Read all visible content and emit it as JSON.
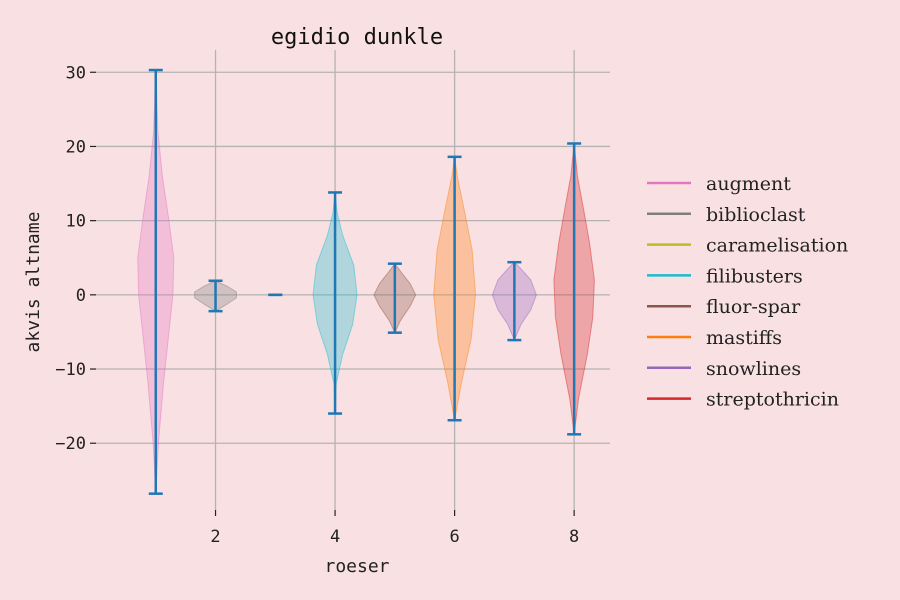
{
  "chart_data": {
    "type": "violin",
    "title": "egidio dunkle",
    "xlabel": "roeser",
    "ylabel": "akvis altname",
    "xlim": [
      0.0,
      8.6
    ],
    "ylim": [
      -29,
      33
    ],
    "xticks": [
      2,
      4,
      6,
      8
    ],
    "yticks": [
      -20,
      -10,
      0,
      10,
      20,
      30
    ],
    "grid": true,
    "legend_position": "right",
    "summary_color": "#1f77b4",
    "series": [
      {
        "name": "augment",
        "position": 1,
        "color": "#e377c2",
        "min": -26.8,
        "max": 30.3,
        "mean": 0.0,
        "density": [
          [
            -26.8,
            0.0
          ],
          [
            -20,
            0.12
          ],
          [
            -12,
            0.35
          ],
          [
            -5,
            0.6
          ],
          [
            0,
            0.78
          ],
          [
            5,
            0.82
          ],
          [
            10,
            0.6
          ],
          [
            16,
            0.3
          ],
          [
            22,
            0.1
          ],
          [
            30.3,
            0.0
          ]
        ]
      },
      {
        "name": "biblioclast",
        "position": 2,
        "color": "#7f7f7f",
        "min": -2.2,
        "max": 1.9,
        "mean": 0.0,
        "density": [
          [
            -2.2,
            0.0
          ],
          [
            -1.3,
            0.5
          ],
          [
            -0.4,
            0.95
          ],
          [
            0.4,
            0.95
          ],
          [
            1.2,
            0.5
          ],
          [
            1.9,
            0.0
          ]
        ]
      },
      {
        "name": "caramelisation",
        "position": 3,
        "color": "#bcbd22",
        "min": 0.0,
        "max": 0.0,
        "mean": 0.0,
        "density": []
      },
      {
        "name": "filibusters",
        "position": 4,
        "color": "#17becf",
        "min": -16.0,
        "max": 13.8,
        "mean": 0.0,
        "density": [
          [
            -16,
            0.0
          ],
          [
            -12,
            0.05
          ],
          [
            -8,
            0.35
          ],
          [
            -4,
            0.8
          ],
          [
            0,
            1.0
          ],
          [
            4,
            0.85
          ],
          [
            8,
            0.35
          ],
          [
            11,
            0.1
          ],
          [
            13.8,
            0.0
          ]
        ]
      },
      {
        "name": "fluor-spar",
        "position": 5,
        "color": "#8c564b",
        "min": -5.1,
        "max": 4.2,
        "mean": 0.0,
        "density": [
          [
            -5.1,
            0.0
          ],
          [
            -3.5,
            0.25
          ],
          [
            -1.5,
            0.7
          ],
          [
            0,
            0.95
          ],
          [
            1.5,
            0.7
          ],
          [
            3,
            0.3
          ],
          [
            4.2,
            0.0
          ]
        ]
      },
      {
        "name": "mastiffs",
        "position": 6,
        "color": "#ff7f0e",
        "min": -16.9,
        "max": 18.6,
        "mean": 0.0,
        "density": [
          [
            -16.9,
            0.0
          ],
          [
            -12,
            0.3
          ],
          [
            -6,
            0.75
          ],
          [
            0,
            0.95
          ],
          [
            6,
            0.8
          ],
          [
            12,
            0.4
          ],
          [
            16,
            0.12
          ],
          [
            18.6,
            0.0
          ]
        ]
      },
      {
        "name": "snowlines",
        "position": 7,
        "color": "#9467bd",
        "min": -6.1,
        "max": 4.4,
        "mean": 0.0,
        "density": [
          [
            -6.1,
            0.0
          ],
          [
            -4,
            0.3
          ],
          [
            -2,
            0.75
          ],
          [
            0,
            1.0
          ],
          [
            2,
            0.75
          ],
          [
            3.5,
            0.3
          ],
          [
            4.4,
            0.0
          ]
        ]
      },
      {
        "name": "streptothricin",
        "position": 8,
        "color": "#d62728",
        "min": -18.8,
        "max": 20.4,
        "mean": 0.0,
        "density": [
          [
            -18.8,
            0.0
          ],
          [
            -14,
            0.2
          ],
          [
            -8,
            0.6
          ],
          [
            -3,
            0.85
          ],
          [
            2,
            0.92
          ],
          [
            7,
            0.7
          ],
          [
            12,
            0.4
          ],
          [
            16,
            0.15
          ],
          [
            20.4,
            0.0
          ]
        ]
      }
    ]
  }
}
